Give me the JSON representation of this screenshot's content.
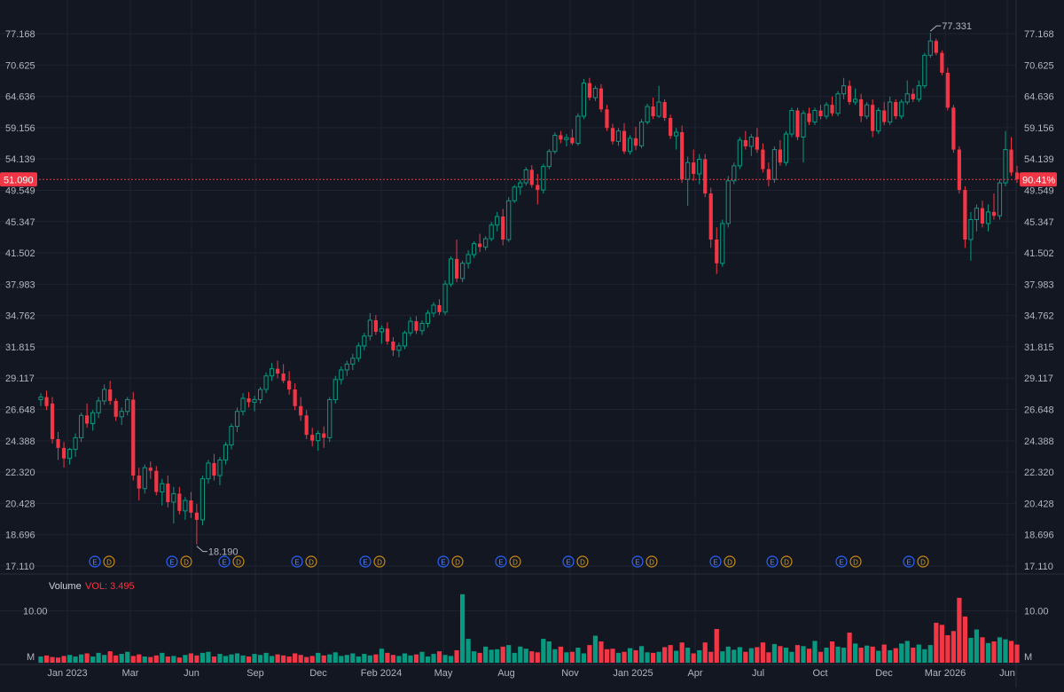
{
  "chart_data": {
    "type": "candlestick",
    "price_axis": {
      "ticks": [
        17.11,
        18.696,
        20.428,
        22.32,
        24.388,
        26.648,
        29.117,
        31.815,
        34.762,
        37.983,
        41.502,
        45.347,
        49.549,
        54.139,
        59.156,
        64.636,
        70.625,
        77.168
      ],
      "tick_labels": [
        "17.110",
        "18.696",
        "20.428",
        "22.320",
        "24.388",
        "26.648",
        "29.117",
        "31.815",
        "34.762",
        "37.983",
        "41.502",
        "45.347",
        "49.549",
        "54.139",
        "59.156",
        "64.636",
        "70.625",
        "77.168"
      ],
      "scale": "log",
      "range": [
        17.11,
        77.168
      ]
    },
    "time_axis": {
      "labels": [
        "Jan 2023",
        "Mar",
        "Jun",
        "Sep",
        "Dec",
        "Feb 2024",
        "May",
        "Aug",
        "Nov",
        "Jan 2025",
        "Apr",
        "Jul",
        "Oct",
        "Dec",
        "Mar 2026",
        "Jun"
      ]
    },
    "last_price": {
      "value": 51.09,
      "label": "51.090",
      "percent_label": "90.41%",
      "color": "#f23645"
    },
    "high_marker": {
      "value": 77.331,
      "label": "77.331"
    },
    "low_marker": {
      "value": 18.19,
      "label": "18.190"
    },
    "events": {
      "earnings_letter": "E",
      "dividend_letter": "D",
      "pairs": 13
    },
    "volume": {
      "title": "Volume",
      "vol_label": "VOL: 3.495",
      "ticks": [
        "10.00",
        "M"
      ],
      "max_value": 13.5,
      "unit": "M",
      "last_value": 3.495
    },
    "candles": [
      [
        27.4,
        27.9,
        26.9,
        27.6
      ],
      [
        27.6,
        28.1,
        26.6,
        26.9
      ],
      [
        27.1,
        27.6,
        24.2,
        24.5
      ],
      [
        24.5,
        25.0,
        23.1,
        23.9
      ],
      [
        23.9,
        24.3,
        22.6,
        23.2
      ],
      [
        23.2,
        23.9,
        22.8,
        23.8
      ],
      [
        23.8,
        24.9,
        23.3,
        24.6
      ],
      [
        24.6,
        26.4,
        24.3,
        26.2
      ],
      [
        26.2,
        27.1,
        25.3,
        25.6
      ],
      [
        25.6,
        26.6,
        25.1,
        26.4
      ],
      [
        26.4,
        27.6,
        26.0,
        27.3
      ],
      [
        27.3,
        28.6,
        27.0,
        28.2
      ],
      [
        28.2,
        28.9,
        27.0,
        27.3
      ],
      [
        27.3,
        27.5,
        25.8,
        26.1
      ],
      [
        26.1,
        26.8,
        25.5,
        26.5
      ],
      [
        26.5,
        27.6,
        26.2,
        27.4
      ],
      [
        27.4,
        28.0,
        21.8,
        22.1
      ],
      [
        22.1,
        22.6,
        20.6,
        21.3
      ],
      [
        21.3,
        22.8,
        21.0,
        22.6
      ],
      [
        22.6,
        23.0,
        21.9,
        22.4
      ],
      [
        22.4,
        22.7,
        20.9,
        21.1
      ],
      [
        21.1,
        21.9,
        20.3,
        21.6
      ],
      [
        21.6,
        22.1,
        20.2,
        20.5
      ],
      [
        20.5,
        21.4,
        19.3,
        21.0
      ],
      [
        21.0,
        21.4,
        19.8,
        20.0
      ],
      [
        20.0,
        20.8,
        19.5,
        20.6
      ],
      [
        20.6,
        21.1,
        19.6,
        19.9
      ],
      [
        19.9,
        20.4,
        18.19,
        19.5
      ],
      [
        19.5,
        22.1,
        19.2,
        21.9
      ],
      [
        21.9,
        23.1,
        21.6,
        22.9
      ],
      [
        22.9,
        23.5,
        21.8,
        22.1
      ],
      [
        22.1,
        23.3,
        21.5,
        23.1
      ],
      [
        23.1,
        24.3,
        22.8,
        24.1
      ],
      [
        24.1,
        25.6,
        23.8,
        25.4
      ],
      [
        25.4,
        26.8,
        25.0,
        26.5
      ],
      [
        26.5,
        27.9,
        26.2,
        27.5
      ],
      [
        27.5,
        28.0,
        26.8,
        27.2
      ],
      [
        27.2,
        27.7,
        26.5,
        27.4
      ],
      [
        27.4,
        28.4,
        27.1,
        28.2
      ],
      [
        28.2,
        29.6,
        27.9,
        29.3
      ],
      [
        29.3,
        30.4,
        28.9,
        29.9
      ],
      [
        29.9,
        30.6,
        29.1,
        29.5
      ],
      [
        29.5,
        30.3,
        28.7,
        28.9
      ],
      [
        28.9,
        29.7,
        27.8,
        28.2
      ],
      [
        28.2,
        28.7,
        26.6,
        26.9
      ],
      [
        26.9,
        27.6,
        25.8,
        26.2
      ],
      [
        26.2,
        26.6,
        24.5,
        24.8
      ],
      [
        24.8,
        25.3,
        24.0,
        24.4
      ],
      [
        24.4,
        25.1,
        23.7,
        24.9
      ],
      [
        24.9,
        25.4,
        23.9,
        24.6
      ],
      [
        24.6,
        27.6,
        24.3,
        27.4
      ],
      [
        27.4,
        29.3,
        27.1,
        29.0
      ],
      [
        29.0,
        30.1,
        28.6,
        29.8
      ],
      [
        29.8,
        30.6,
        29.3,
        30.3
      ],
      [
        30.3,
        31.2,
        29.8,
        30.8
      ],
      [
        30.8,
        32.2,
        30.5,
        31.9
      ],
      [
        31.9,
        33.1,
        31.5,
        32.8
      ],
      [
        32.8,
        35.0,
        32.4,
        34.3
      ],
      [
        34.3,
        34.8,
        32.9,
        33.2
      ],
      [
        33.2,
        33.8,
        32.1,
        33.5
      ],
      [
        33.5,
        34.1,
        32.0,
        32.3
      ],
      [
        32.3,
        32.7,
        31.0,
        31.5
      ],
      [
        31.5,
        32.2,
        30.9,
        31.9
      ],
      [
        31.9,
        33.3,
        31.6,
        33.1
      ],
      [
        33.1,
        34.6,
        32.8,
        34.2
      ],
      [
        34.2,
        34.7,
        33.0,
        33.3
      ],
      [
        33.3,
        34.3,
        32.9,
        34.0
      ],
      [
        34.0,
        35.3,
        33.6,
        35.0
      ],
      [
        35.0,
        36.1,
        34.6,
        35.8
      ],
      [
        35.8,
        36.4,
        34.8,
        35.1
      ],
      [
        35.1,
        38.4,
        34.8,
        38.0
      ],
      [
        38.0,
        41.1,
        37.7,
        40.8
      ],
      [
        40.8,
        43.1,
        38.2,
        38.6
      ],
      [
        38.6,
        40.6,
        38.2,
        40.3
      ],
      [
        40.3,
        41.8,
        39.7,
        41.3
      ],
      [
        41.3,
        42.9,
        40.9,
        42.6
      ],
      [
        42.6,
        43.8,
        41.6,
        42.2
      ],
      [
        42.2,
        43.5,
        41.8,
        43.2
      ],
      [
        43.2,
        45.3,
        42.9,
        44.9
      ],
      [
        44.9,
        46.6,
        44.1,
        46.0
      ],
      [
        46.0,
        47.0,
        42.4,
        43.1
      ],
      [
        43.1,
        48.6,
        42.8,
        48.1
      ],
      [
        48.1,
        50.3,
        47.8,
        50.0
      ],
      [
        50.0,
        51.1,
        48.9,
        50.6
      ],
      [
        50.6,
        52.9,
        50.2,
        52.5
      ],
      [
        52.5,
        53.2,
        49.9,
        50.3
      ],
      [
        50.3,
        51.9,
        47.6,
        49.6
      ],
      [
        49.6,
        53.4,
        49.1,
        53.0
      ],
      [
        53.0,
        55.7,
        52.6,
        55.3
      ],
      [
        55.3,
        58.4,
        54.9,
        57.9
      ],
      [
        57.9,
        58.6,
        56.6,
        57.2
      ],
      [
        57.2,
        58.1,
        56.1,
        57.5
      ],
      [
        57.5,
        58.9,
        56.3,
        56.6
      ],
      [
        56.6,
        61.6,
        56.2,
        61.1
      ],
      [
        61.1,
        67.9,
        60.6,
        67.1
      ],
      [
        67.1,
        68.1,
        63.9,
        64.4
      ],
      [
        64.4,
        66.6,
        63.8,
        66.1
      ],
      [
        66.1,
        66.9,
        61.8,
        62.3
      ],
      [
        62.3,
        63.1,
        58.6,
        59.1
      ],
      [
        59.1,
        59.8,
        56.4,
        56.9
      ],
      [
        56.9,
        59.1,
        56.2,
        58.6
      ],
      [
        58.6,
        59.9,
        54.9,
        55.3
      ],
      [
        55.3,
        57.9,
        54.8,
        57.4
      ],
      [
        57.4,
        59.3,
        55.5,
        56.2
      ],
      [
        56.2,
        60.6,
        55.8,
        60.1
      ],
      [
        60.1,
        63.3,
        59.7,
        62.8
      ],
      [
        62.8,
        64.4,
        60.6,
        61.1
      ],
      [
        61.1,
        66.6,
        60.8,
        63.6
      ],
      [
        63.6,
        64.1,
        60.3,
        60.8
      ],
      [
        60.8,
        61.4,
        57.3,
        57.8
      ],
      [
        57.8,
        59.1,
        55.6,
        58.4
      ],
      [
        58.4,
        59.5,
        50.6,
        51.1
      ],
      [
        51.1,
        54.5,
        47.4,
        53.6
      ],
      [
        53.6,
        55.6,
        50.9,
        51.9
      ],
      [
        51.9,
        54.9,
        50.4,
        54.1
      ],
      [
        54.1,
        54.9,
        48.6,
        49.1
      ],
      [
        49.1,
        49.9,
        42.1,
        43.1
      ],
      [
        43.1,
        44.6,
        39.1,
        40.3
      ],
      [
        40.3,
        45.6,
        39.9,
        45.1
      ],
      [
        45.1,
        51.6,
        44.6,
        50.9
      ],
      [
        50.9,
        53.6,
        50.4,
        53.1
      ],
      [
        53.1,
        57.6,
        52.6,
        57.1
      ],
      [
        57.1,
        58.6,
        55.6,
        56.1
      ],
      [
        56.1,
        58.1,
        54.6,
        57.6
      ],
      [
        57.6,
        59.1,
        55.1,
        55.6
      ],
      [
        55.6,
        56.6,
        52.1,
        52.6
      ],
      [
        52.6,
        53.6,
        50.1,
        51.1
      ],
      [
        51.1,
        56.1,
        50.6,
        55.6
      ],
      [
        55.6,
        57.1,
        53.1,
        53.6
      ],
      [
        53.6,
        58.6,
        53.1,
        58.1
      ],
      [
        58.1,
        62.6,
        57.6,
        62.1
      ],
      [
        62.1,
        62.6,
        57.1,
        57.6
      ],
      [
        57.6,
        62.1,
        53.6,
        61.6
      ],
      [
        61.6,
        62.6,
        59.6,
        60.1
      ],
      [
        60.1,
        62.6,
        59.6,
        62.1
      ],
      [
        62.1,
        63.1,
        60.6,
        61.1
      ],
      [
        61.1,
        63.6,
        60.6,
        63.1
      ],
      [
        63.1,
        64.6,
        61.1,
        61.6
      ],
      [
        61.6,
        65.6,
        61.1,
        65.1
      ],
      [
        65.1,
        68.1,
        64.1,
        66.6
      ],
      [
        66.6,
        67.6,
        63.1,
        63.6
      ],
      [
        63.6,
        66.1,
        63.1,
        64.1
      ],
      [
        64.1,
        65.1,
        60.1,
        61.1
      ],
      [
        61.1,
        63.6,
        60.6,
        63.1
      ],
      [
        63.1,
        64.1,
        57.6,
        58.6
      ],
      [
        58.6,
        62.6,
        58.1,
        62.1
      ],
      [
        62.1,
        63.6,
        59.6,
        60.1
      ],
      [
        60.1,
        64.6,
        59.6,
        63.6
      ],
      [
        63.6,
        64.1,
        60.6,
        61.1
      ],
      [
        61.1,
        64.1,
        60.6,
        63.6
      ],
      [
        63.6,
        67.6,
        63.1,
        65.1
      ],
      [
        65.1,
        66.1,
        63.6,
        64.1
      ],
      [
        64.1,
        67.6,
        63.6,
        66.6
      ],
      [
        66.6,
        73.1,
        66.1,
        72.6
      ],
      [
        72.6,
        77.331,
        72.1,
        75.6
      ],
      [
        75.6,
        76.1,
        72.6,
        73.1
      ],
      [
        73.1,
        73.6,
        68.6,
        69.1
      ],
      [
        69.1,
        70.1,
        62.1,
        62.6
      ],
      [
        62.6,
        63.1,
        55.1,
        55.6
      ],
      [
        55.6,
        56.1,
        49.1,
        49.6
      ],
      [
        49.6,
        50.1,
        42.1,
        43.1
      ],
      [
        43.1,
        46.6,
        40.6,
        45.6
      ],
      [
        45.6,
        47.6,
        44.1,
        47.1
      ],
      [
        47.1,
        48.1,
        44.6,
        45.1
      ],
      [
        45.1,
        47.6,
        44.1,
        46.6
      ],
      [
        46.6,
        49.1,
        45.6,
        46.1
      ],
      [
        46.1,
        51.1,
        45.6,
        50.6
      ],
      [
        50.6,
        58.6,
        50.1,
        55.6
      ],
      [
        55.6,
        57.6,
        51.6,
        52.1
      ],
      [
        52.1,
        53.1,
        50.6,
        51.09
      ]
    ],
    "volumes": [
      1.2,
      1.4,
      1.1,
      1.0,
      1.3,
      1.5,
      1.2,
      1.6,
      1.8,
      1.2,
      1.9,
      1.5,
      2.2,
      1.4,
      1.7,
      2.1,
      1.3,
      1.6,
      1.2,
      1.1,
      1.4,
      1.9,
      1.2,
      1.3,
      1.0,
      1.5,
      1.8,
      1.4,
      1.9,
      2.1,
      1.2,
      1.7,
      1.3,
      1.6,
      1.8,
      1.4,
      1.2,
      1.7,
      1.5,
      1.9,
      1.3,
      1.6,
      1.4,
      1.2,
      1.8,
      1.5,
      1.1,
      1.3,
      1.9,
      1.4,
      1.6,
      2.0,
      1.3,
      1.5,
      1.8,
      1.2,
      1.7,
      1.4,
      1.6,
      2.7,
      1.9,
      1.5,
      1.3,
      1.8,
      1.4,
      1.6,
      2.1,
      1.2,
      1.7,
      2.2,
      1.5,
      1.3,
      2.4,
      13.2,
      4.6,
      2.2,
      1.9,
      3.1,
      2.5,
      2.6,
      3.1,
      3.4,
      1.9,
      3.1,
      2.7,
      2.2,
      2.0,
      4.6,
      4.1,
      2.6,
      3.1,
      2.0,
      2.1,
      2.9,
      1.8,
      3.4,
      5.2,
      4.1,
      2.6,
      2.7,
      1.9,
      2.1,
      2.8,
      2.4,
      3.2,
      2.0,
      1.9,
      2.1,
      3.0,
      3.4,
      2.3,
      3.9,
      2.9,
      1.8,
      2.4,
      3.9,
      2.1,
      6.5,
      2.2,
      3.1,
      2.5,
      3.0,
      2.1,
      2.8,
      3.0,
      3.9,
      2.0,
      3.6,
      3.2,
      2.9,
      2.1,
      3.4,
      3.2,
      2.7,
      4.2,
      2.1,
      2.9,
      4.1,
      3.1,
      2.9,
      5.8,
      3.7,
      2.9,
      3.3,
      3.1,
      2.3,
      3.5,
      2.4,
      2.8,
      3.7,
      4.2,
      2.9,
      3.5,
      2.6,
      3.4,
      7.7,
      7.3,
      5.3,
      6.1,
      12.5,
      8.9,
      4.8,
      6.4,
      4.9,
      3.8,
      4.1,
      4.9,
      4.5,
      4.2,
      3.495
    ],
    "colors": {
      "up": "#089981",
      "down": "#f23645",
      "grid": "#1f2330",
      "background": "#131722",
      "marker_e": "#2962ff",
      "marker_d": "#c78a14"
    }
  }
}
